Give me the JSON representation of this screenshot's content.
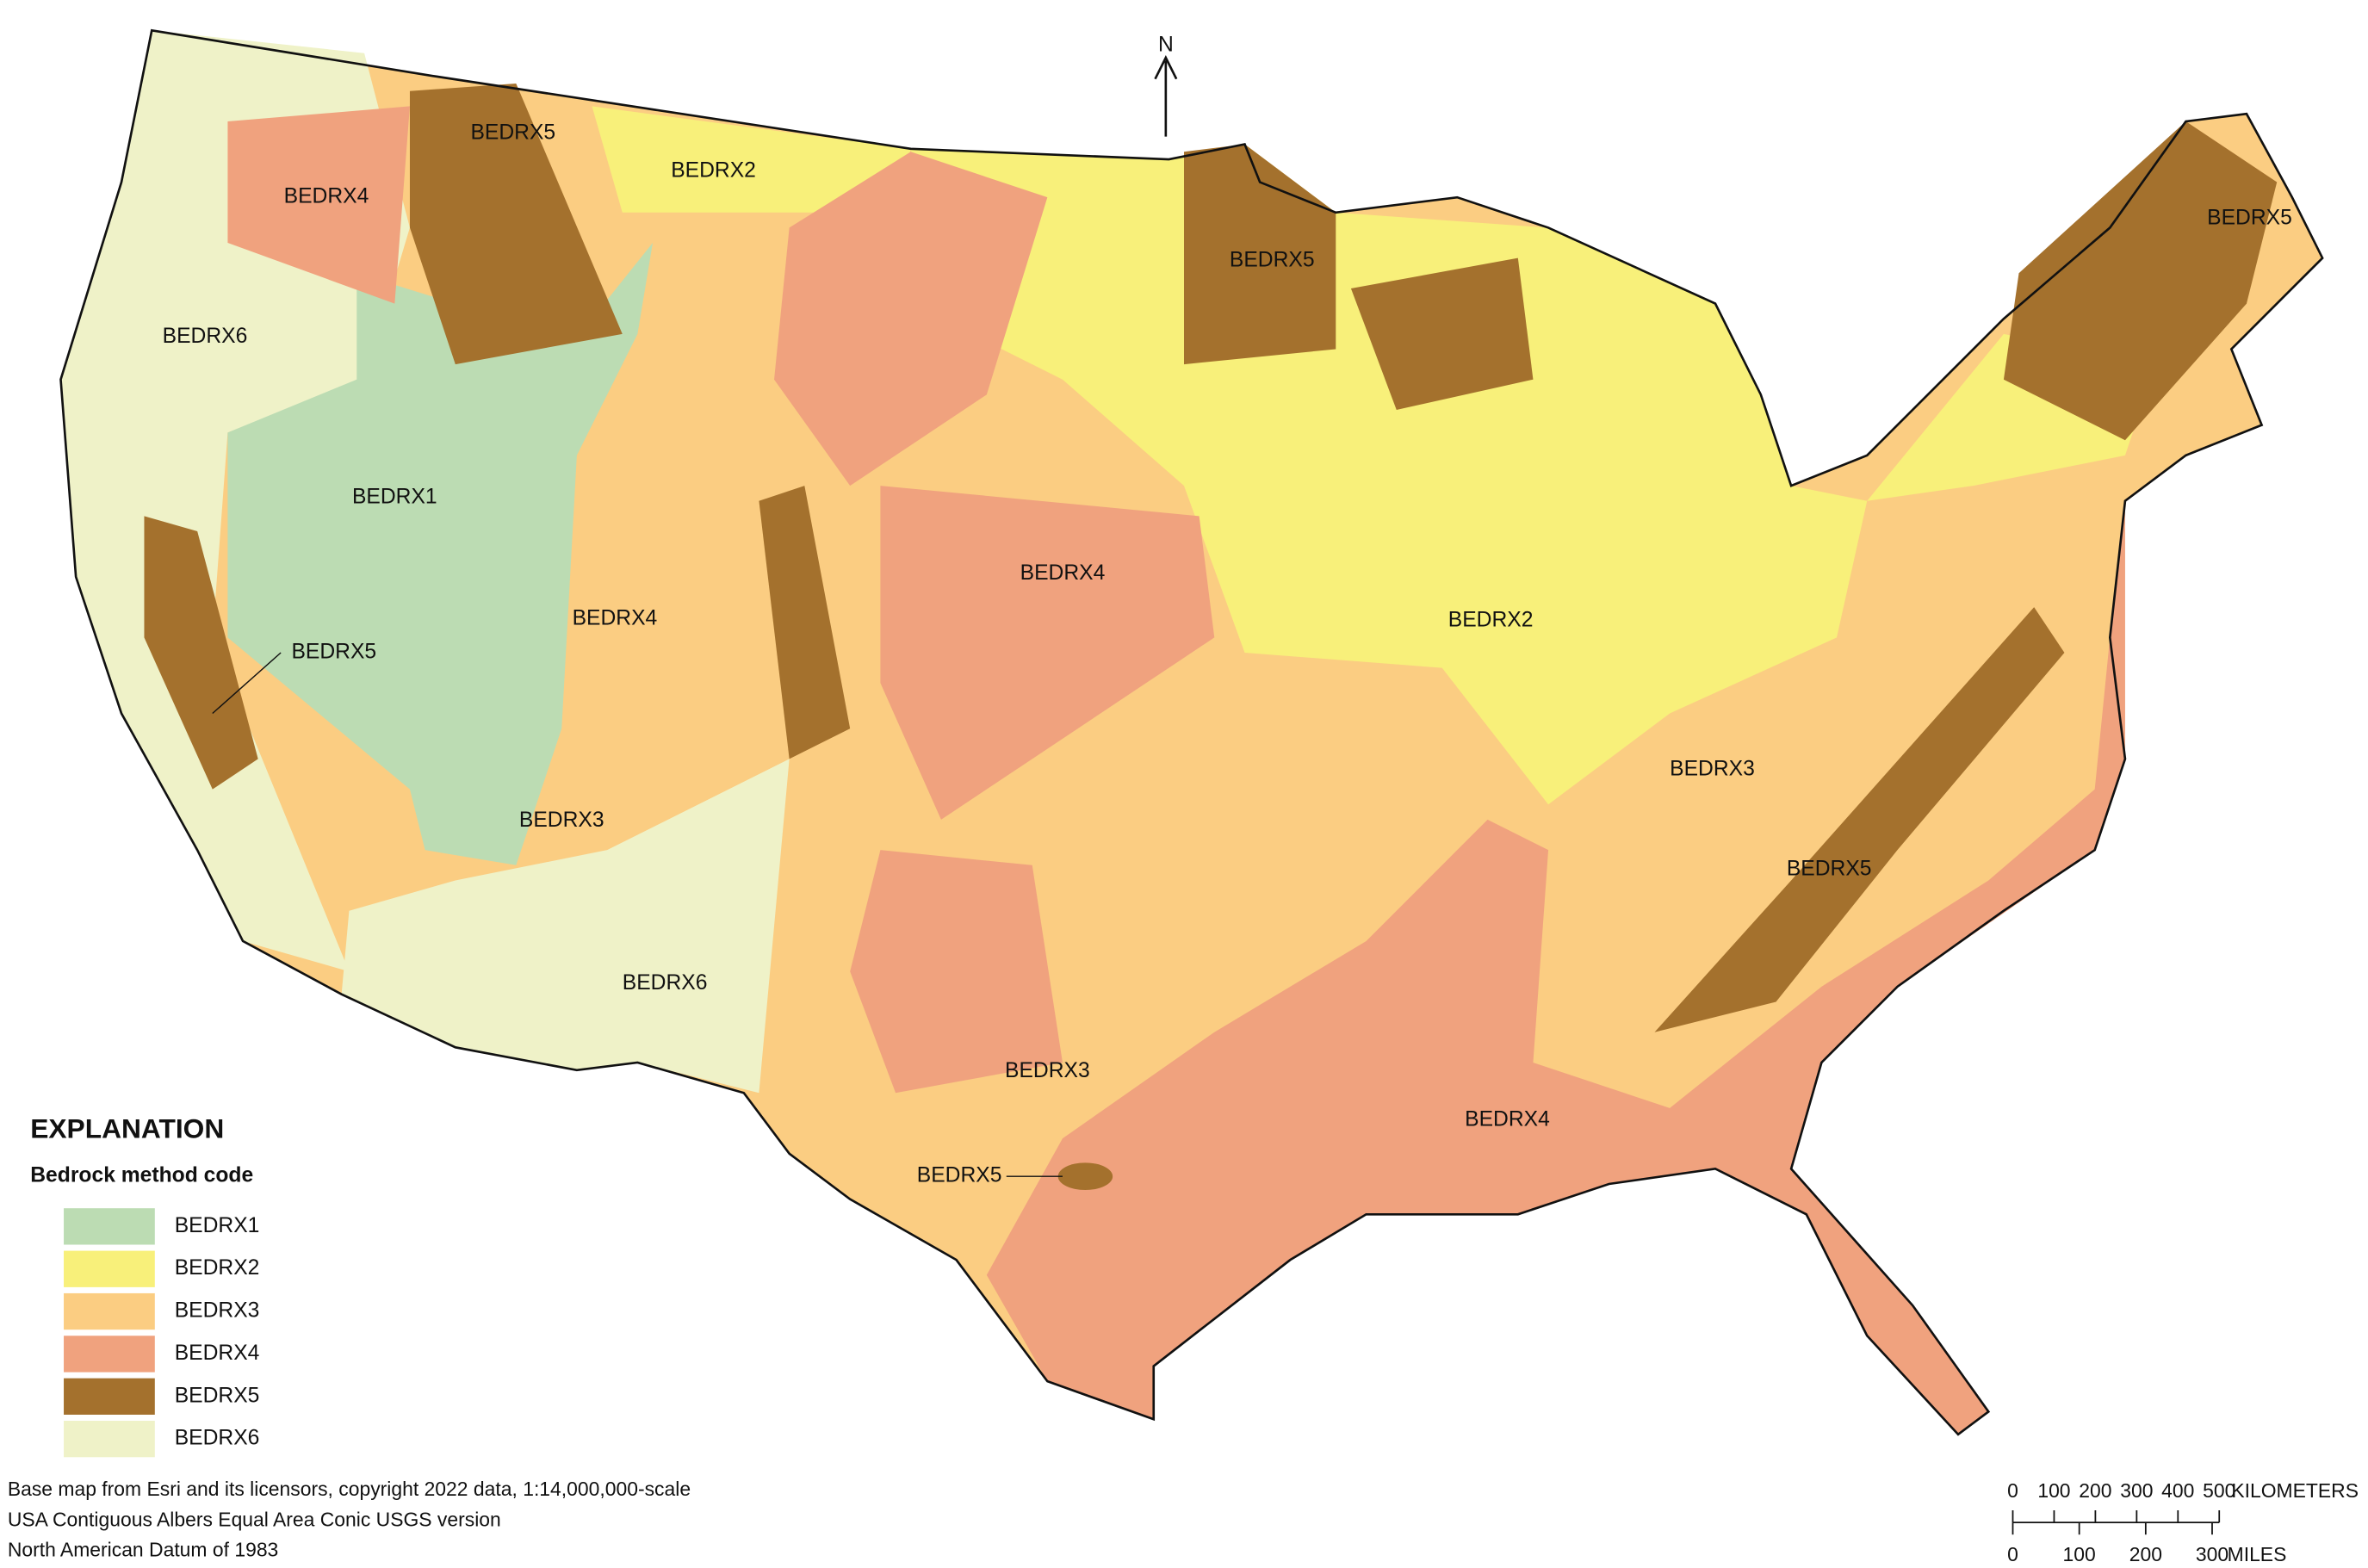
{
  "map": {
    "north": "N",
    "legend": {
      "title": "EXPLANATION",
      "subtitle": "Bedrock method code",
      "items": [
        {
          "label": "BEDRX1",
          "color": "#bcdcb3"
        },
        {
          "label": "BEDRX2",
          "color": "#f8f07a"
        },
        {
          "label": "BEDRX3",
          "color": "#fbcd82"
        },
        {
          "label": "BEDRX4",
          "color": "#f0a27e"
        },
        {
          "label": "BEDRX5",
          "color": "#a4712d"
        },
        {
          "label": "BEDRX6",
          "color": "#eff2c8"
        }
      ]
    },
    "labels": [
      "BEDRX5",
      "BEDRX2",
      "BEDRX4",
      "BEDRX6",
      "BEDRX1",
      "BEDRX4",
      "BEDRX4",
      "BEDRX5",
      "BEDRX2",
      "BEDRX3",
      "BEDRX3",
      "BEDRX5",
      "BEDRX6",
      "BEDRX3",
      "BEDRX4",
      "BEDRX5",
      "BEDRX5",
      "BEDRX5"
    ],
    "credits": [
      "Base map from Esri and its licensors, copyright 2022  data, 1:14,000,000-scale",
      "USA Contiguous Albers Equal Area Conic USGS version",
      "North American Datum of 1983"
    ],
    "scale_bar": {
      "km": {
        "ticks": [
          0,
          100,
          200,
          300,
          400,
          500
        ],
        "unit": "KILOMETERS"
      },
      "miles": {
        "ticks": [
          0,
          100,
          200,
          300
        ],
        "unit": "MILES"
      }
    }
  }
}
